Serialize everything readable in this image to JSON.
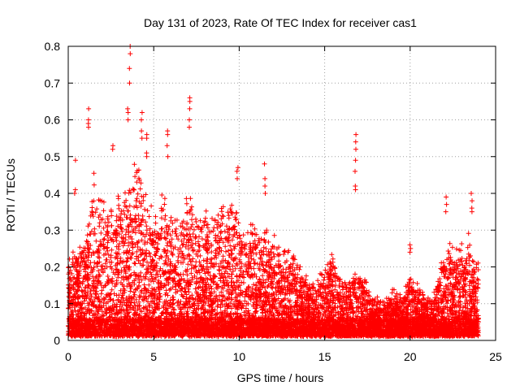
{
  "chart_data": {
    "type": "scatter",
    "title": "Day 131 of 2023, Rate Of TEC Index for receiver cas1",
    "xlabel": "GPS time / hours",
    "ylabel": "ROTI / TECUs",
    "xlim": [
      0,
      25
    ],
    "ylim": [
      0,
      0.8
    ],
    "xticks": [
      0,
      5,
      10,
      15,
      20,
      25
    ],
    "yticks": [
      0,
      0.1,
      0.2,
      0.3,
      0.4,
      0.5,
      0.6,
      0.7,
      0.8
    ],
    "grid": true,
    "marker": "+",
    "color": "#ff0000",
    "data_extent_x": [
      0,
      24
    ],
    "envelope": {
      "x": [
        0,
        0.5,
        1,
        1.5,
        2,
        2.5,
        3,
        3.5,
        4,
        4.5,
        5,
        5.5,
        6,
        6.5,
        7,
        7.5,
        8,
        8.5,
        9,
        9.5,
        10,
        10.5,
        11,
        11.5,
        12,
        12.5,
        13,
        13.5,
        14,
        14.5,
        15,
        15.5,
        16,
        16.5,
        17,
        17.5,
        18,
        18.5,
        19,
        19.5,
        20,
        20.5,
        21,
        21.5,
        22,
        22.5,
        23,
        23.5,
        24
      ],
      "typical_max": [
        0.2,
        0.22,
        0.25,
        0.4,
        0.33,
        0.35,
        0.35,
        0.38,
        0.45,
        0.38,
        0.3,
        0.35,
        0.3,
        0.3,
        0.35,
        0.3,
        0.3,
        0.32,
        0.33,
        0.35,
        0.3,
        0.28,
        0.28,
        0.27,
        0.25,
        0.23,
        0.22,
        0.18,
        0.15,
        0.15,
        0.18,
        0.2,
        0.15,
        0.14,
        0.18,
        0.13,
        0.1,
        0.1,
        0.12,
        0.1,
        0.15,
        0.12,
        0.1,
        0.12,
        0.22,
        0.25,
        0.22,
        0.25,
        0.18
      ]
    },
    "spikes": [
      {
        "x": 3.6,
        "y": [
          0.8,
          0.78,
          0.74,
          0.7
        ]
      },
      {
        "x": 3.5,
        "y": [
          0.63,
          0.62,
          0.6
        ]
      },
      {
        "x": 1.2,
        "y": [
          0.63,
          0.6,
          0.59,
          0.58
        ]
      },
      {
        "x": 7.1,
        "y": [
          0.66,
          0.65,
          0.63,
          0.6,
          0.58
        ]
      },
      {
        "x": 4.3,
        "y": [
          0.62,
          0.6,
          0.57,
          0.55
        ]
      },
      {
        "x": 4.6,
        "y": [
          0.56,
          0.55,
          0.51,
          0.5
        ]
      },
      {
        "x": 5.8,
        "y": [
          0.57,
          0.56,
          0.53,
          0.5
        ]
      },
      {
        "x": 16.8,
        "y": [
          0.56,
          0.54,
          0.52,
          0.49,
          0.46,
          0.42,
          0.41
        ]
      },
      {
        "x": 0.4,
        "y": [
          0.49,
          0.41,
          0.4
        ]
      },
      {
        "x": 2.6,
        "y": [
          0.53,
          0.52
        ]
      },
      {
        "x": 9.9,
        "y": [
          0.47,
          0.46,
          0.44
        ]
      },
      {
        "x": 11.5,
        "y": [
          0.48,
          0.44,
          0.42,
          0.4
        ]
      },
      {
        "x": 23.6,
        "y": [
          0.4,
          0.38,
          0.36,
          0.35
        ]
      },
      {
        "x": 22.1,
        "y": [
          0.39,
          0.37,
          0.35
        ]
      },
      {
        "x": 20.0,
        "y": [
          0.26,
          0.25,
          0.24
        ]
      }
    ]
  }
}
